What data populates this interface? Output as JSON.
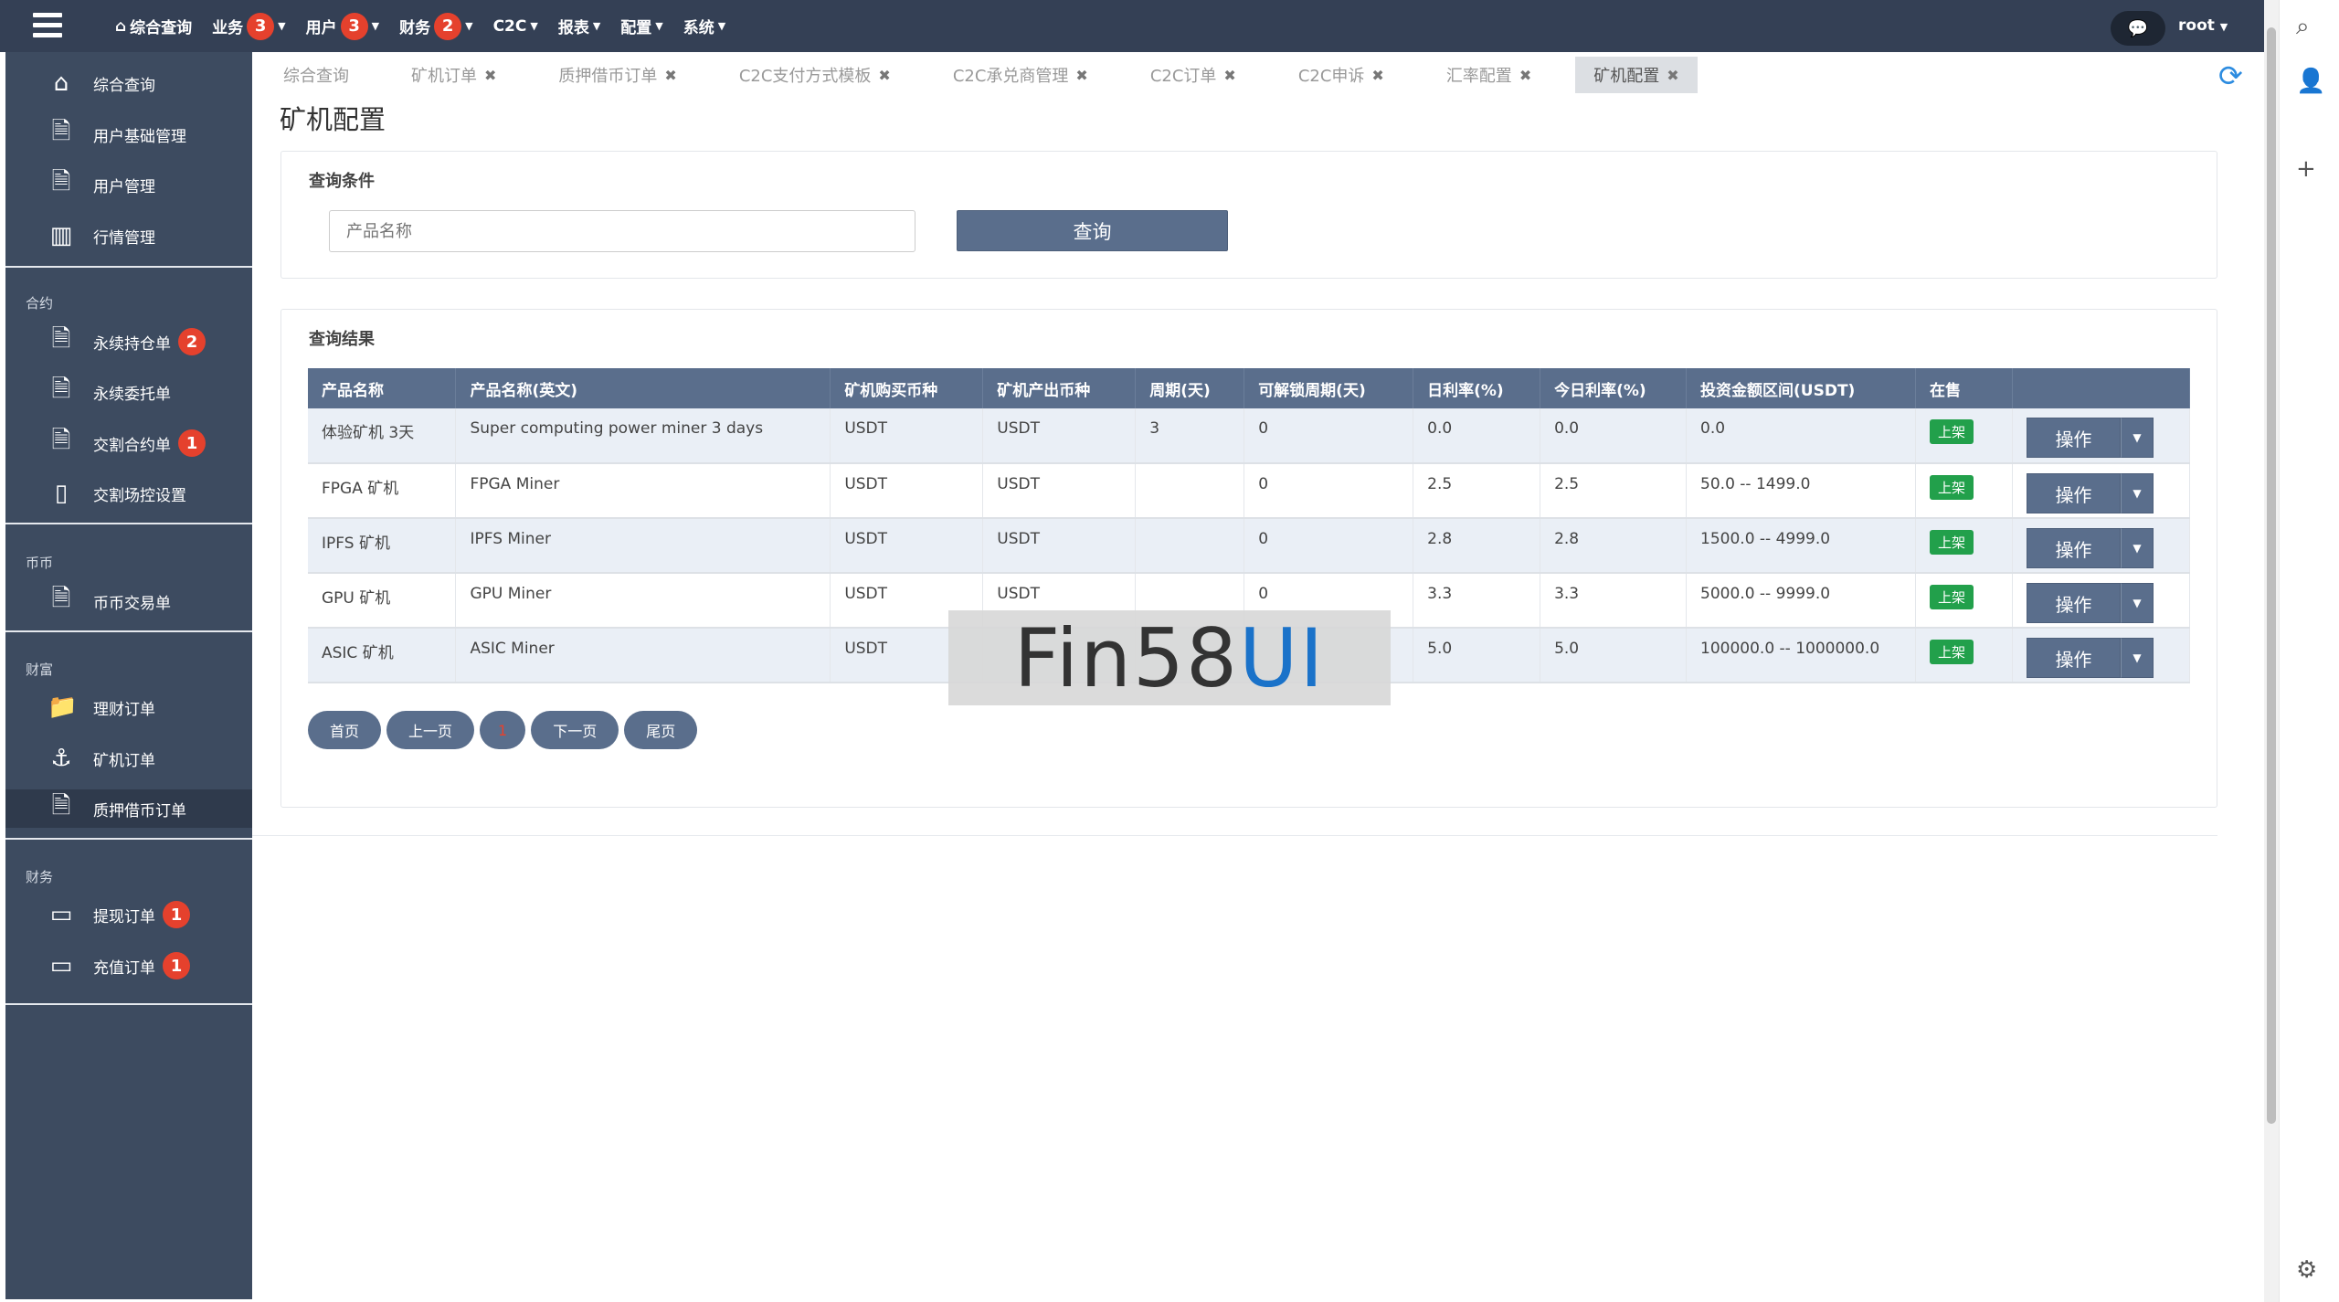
{
  "topbar": {
    "home": "综合查询",
    "menus": [
      {
        "label": "业务",
        "badge": "3"
      },
      {
        "label": "用户",
        "badge": "3"
      },
      {
        "label": "财务",
        "badge": "2"
      },
      {
        "label": "C2C"
      },
      {
        "label": "报表"
      },
      {
        "label": "配置"
      },
      {
        "label": "系统"
      }
    ],
    "user": "root"
  },
  "sidebar": {
    "items": [
      {
        "label": "综合查询",
        "icon": "home-icon"
      },
      {
        "label": "用户基础管理",
        "icon": "document-icon"
      },
      {
        "label": "用户管理",
        "icon": "document-icon"
      },
      {
        "label": "行情管理",
        "icon": "bar-chart-icon"
      }
    ],
    "sections": [
      {
        "title": "合约",
        "items": [
          {
            "label": "永续持仓单",
            "badge": "2"
          },
          {
            "label": "永续委托单"
          },
          {
            "label": "交割合约单",
            "badge": "1"
          },
          {
            "label": "交割场控设置"
          }
        ]
      },
      {
        "title": "币币",
        "items": [
          {
            "label": "币币交易单"
          }
        ]
      },
      {
        "title": "财富",
        "items": [
          {
            "label": "理财订单"
          },
          {
            "label": "矿机订单"
          },
          {
            "label": "质押借币订单"
          }
        ]
      },
      {
        "title": "财务",
        "items": [
          {
            "label": "提现订单",
            "badge": "1"
          },
          {
            "label": "充值订单",
            "badge": "1"
          }
        ]
      }
    ]
  },
  "tabs": [
    {
      "label": "综合查询"
    },
    {
      "label": "矿机订单"
    },
    {
      "label": "质押借币订单"
    },
    {
      "label": "C2C支付方式模板"
    },
    {
      "label": "C2C承兑商管理"
    },
    {
      "label": "C2C订单"
    },
    {
      "label": "C2C申诉"
    },
    {
      "label": "汇率配置"
    },
    {
      "label": "矿机配置",
      "active": true
    }
  ],
  "page_title": "矿机配置",
  "query": {
    "heading": "查询条件",
    "placeholder": "产品名称",
    "button": "查询"
  },
  "results": {
    "heading": "查询结果",
    "columns": [
      "产品名称",
      "产品名称(英文)",
      "矿机购买币种",
      "矿机产出币种",
      "周期(天)",
      "可解锁周期(天)",
      "日利率(%)",
      "今日利率(%)",
      "投资金额区间(USDT)",
      "在售",
      ""
    ],
    "rows": [
      [
        "体验矿机 3天",
        "Super computing power miner 3 days",
        "USDT",
        "USDT",
        "3",
        "0",
        "0.0",
        "0.0",
        "0.0",
        "上架"
      ],
      [
        "FPGA 矿机",
        "FPGA Miner",
        "USDT",
        "USDT",
        "",
        "0",
        "2.5",
        "2.5",
        "50.0 -- 1499.0",
        "上架"
      ],
      [
        "IPFS 矿机",
        "IPFS Miner",
        "USDT",
        "USDT",
        "",
        "0",
        "2.8",
        "2.8",
        "1500.0 -- 4999.0",
        "上架"
      ],
      [
        "GPU 矿机",
        "GPU Miner",
        "USDT",
        "USDT",
        "",
        "0",
        "3.3",
        "3.3",
        "5000.0 -- 9999.0",
        "上架"
      ],
      [
        "ASIC 矿机",
        "ASIC Miner",
        "USDT",
        "",
        "",
        "",
        "5.0",
        "5.0",
        "100000.0 -- 1000000.0",
        "上架"
      ]
    ],
    "action": "操作"
  },
  "pager": {
    "first": "首页",
    "prev": "上一页",
    "current": "1",
    "next": "下一页",
    "last": "尾页"
  },
  "watermark": {
    "text": "Fin58",
    "accent": "UI"
  },
  "colors": {
    "topbar": "#344055",
    "sidebar": "#3d4b60",
    "primary": "#5a6e8c",
    "badge": "#e5412d",
    "onsale": "#22a04b"
  }
}
